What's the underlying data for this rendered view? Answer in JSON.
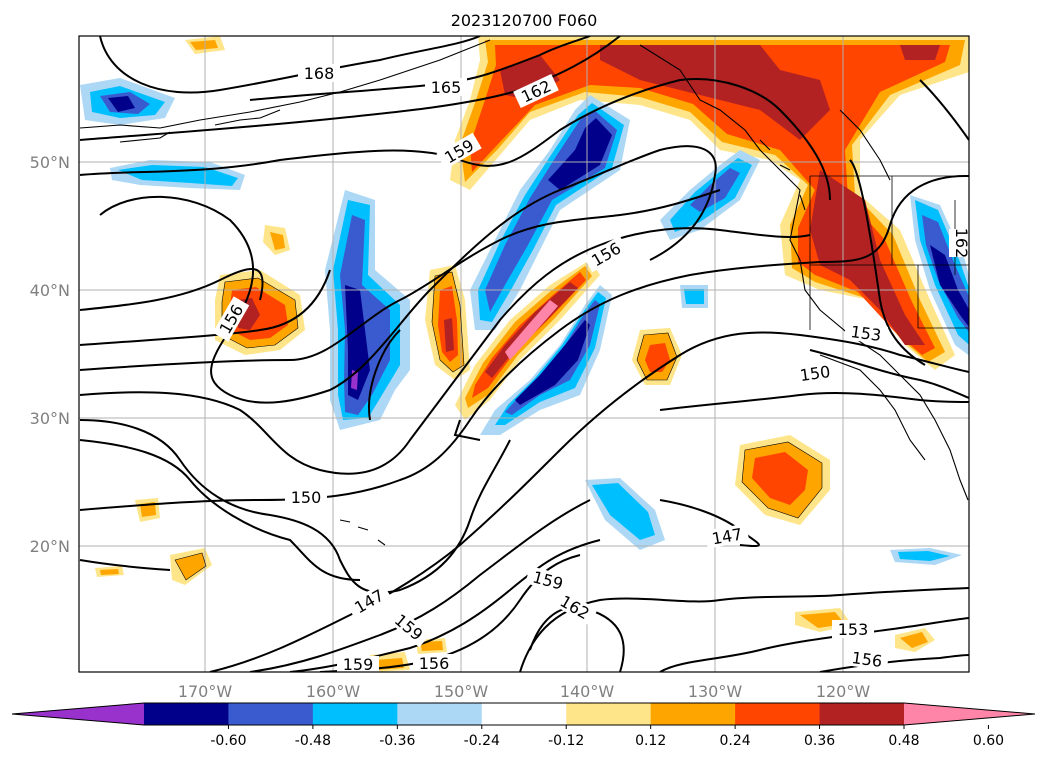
{
  "title": "2023120700 F060",
  "lat_labels": [
    "50°N",
    "40°N",
    "30°N",
    "20°N"
  ],
  "lon_labels": [
    "170°W",
    "160°W",
    "150°W",
    "140°W",
    "130°W",
    "120°W"
  ],
  "colorbar": {
    "ticks": [
      "-0.60",
      "-0.48",
      "-0.36",
      "-0.24",
      "-0.12",
      "0.12",
      "0.24",
      "0.36",
      "0.48",
      "0.60"
    ],
    "colors": [
      "#9932cc",
      "#00008b",
      "#3a5bd0",
      "#00bfff",
      "#add8f5",
      "#ffffff",
      "#ffe58a",
      "#ffa500",
      "#ff4500",
      "#b22222",
      "#ff85a8"
    ]
  },
  "contour_labels": [
    "168",
    "165",
    "162",
    "159",
    "156",
    "156",
    "153",
    "150",
    "150",
    "147",
    "147",
    "159",
    "162",
    "153",
    "156",
    "159",
    "156",
    "162"
  ]
}
